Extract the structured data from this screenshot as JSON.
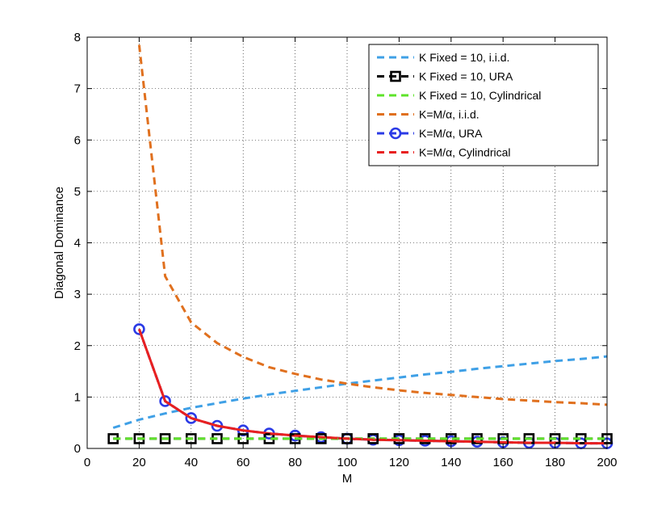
{
  "chart_data": {
    "type": "line",
    "xlabel": "M",
    "ylabel": "Diagonal Dominance",
    "xlim": [
      0,
      200
    ],
    "ylim": [
      0,
      8
    ],
    "xticks": [
      0,
      20,
      40,
      60,
      80,
      100,
      120,
      140,
      160,
      180,
      200
    ],
    "yticks": [
      0,
      1,
      2,
      3,
      4,
      5,
      6,
      7,
      8
    ],
    "grid": true,
    "legend_position": "top-right",
    "series": [
      {
        "name": "K Fixed = 10, i.i.d.",
        "color": "#3fa0e6",
        "marker": "none",
        "x": [
          10,
          20,
          30,
          40,
          50,
          60,
          70,
          80,
          90,
          100,
          110,
          120,
          130,
          140,
          150,
          160,
          170,
          180,
          190,
          200
        ],
        "y": [
          0.4,
          0.56,
          0.68,
          0.79,
          0.88,
          0.97,
          1.05,
          1.12,
          1.19,
          1.26,
          1.32,
          1.38,
          1.44,
          1.49,
          1.55,
          1.6,
          1.65,
          1.7,
          1.74,
          1.79
        ]
      },
      {
        "name": "K Fixed = 10, URA",
        "color": "#000000",
        "marker": "square",
        "x": [
          10,
          20,
          30,
          40,
          50,
          60,
          70,
          80,
          90,
          100,
          110,
          120,
          130,
          140,
          150,
          160,
          170,
          180,
          190,
          200
        ],
        "y": [
          0.19,
          0.19,
          0.19,
          0.19,
          0.19,
          0.19,
          0.19,
          0.19,
          0.19,
          0.19,
          0.19,
          0.19,
          0.19,
          0.19,
          0.19,
          0.19,
          0.19,
          0.19,
          0.19,
          0.19
        ]
      },
      {
        "name": "K Fixed = 10, Cylindrical",
        "color": "#5ee32a",
        "marker": "none",
        "x": [
          10,
          20,
          30,
          40,
          50,
          60,
          70,
          80,
          90,
          100,
          110,
          120,
          130,
          140,
          150,
          160,
          170,
          180,
          190,
          200
        ],
        "y": [
          0.19,
          0.19,
          0.19,
          0.19,
          0.19,
          0.19,
          0.19,
          0.19,
          0.19,
          0.19,
          0.19,
          0.19,
          0.19,
          0.19,
          0.19,
          0.19,
          0.19,
          0.19,
          0.19,
          0.19
        ]
      },
      {
        "name": "K=M/α, i.i.d.",
        "color": "#e0701e",
        "marker": "none",
        "x": [
          20,
          30,
          40,
          50,
          60,
          70,
          80,
          90,
          100,
          110,
          120,
          130,
          140,
          150,
          160,
          170,
          180,
          190,
          200
        ],
        "y": [
          7.85,
          3.35,
          2.45,
          2.05,
          1.78,
          1.58,
          1.45,
          1.34,
          1.26,
          1.19,
          1.13,
          1.08,
          1.04,
          1.0,
          0.96,
          0.93,
          0.9,
          0.88,
          0.85
        ]
      },
      {
        "name": "K=M/α, URA",
        "color": "#2b3be6",
        "marker": "circle",
        "x": [
          20,
          30,
          40,
          50,
          60,
          70,
          80,
          90,
          100,
          110,
          120,
          130,
          140,
          150,
          160,
          170,
          180,
          190,
          200
        ],
        "y": [
          2.32,
          0.92,
          0.59,
          0.44,
          0.35,
          0.29,
          0.25,
          0.22,
          0.19,
          0.17,
          0.16,
          0.15,
          0.14,
          0.13,
          0.12,
          0.11,
          0.11,
          0.1,
          0.1
        ]
      },
      {
        "name": "K=M/α, Cylindrical",
        "color": "#e82020",
        "marker": "none",
        "x": [
          20,
          30,
          40,
          50,
          60,
          70,
          80,
          90,
          100,
          110,
          120,
          130,
          140,
          150,
          160,
          170,
          180,
          190,
          200
        ],
        "y": [
          2.32,
          0.92,
          0.59,
          0.44,
          0.35,
          0.29,
          0.25,
          0.22,
          0.19,
          0.17,
          0.16,
          0.15,
          0.14,
          0.13,
          0.12,
          0.11,
          0.11,
          0.1,
          0.1
        ]
      }
    ]
  }
}
